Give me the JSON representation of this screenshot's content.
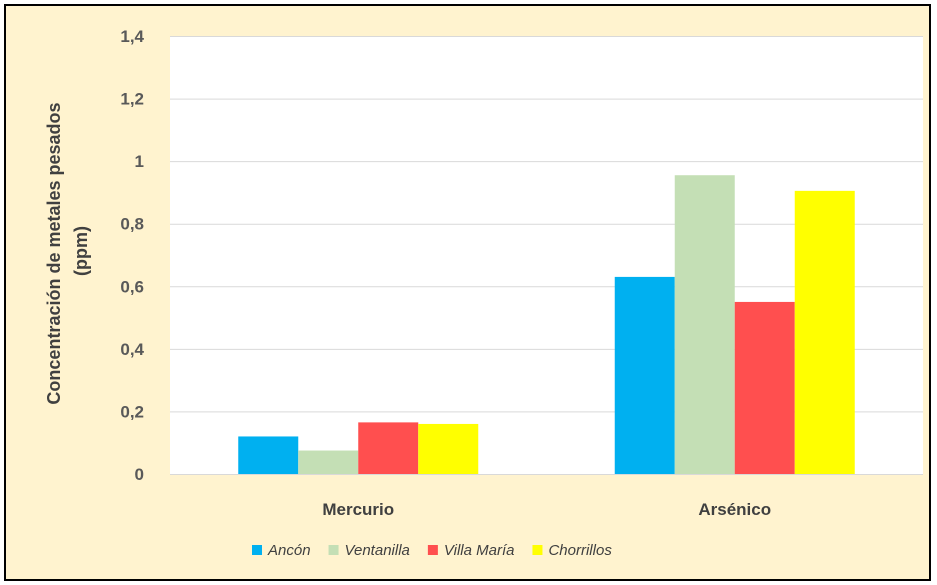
{
  "chart_data": {
    "type": "bar",
    "categories": [
      "Mercurio",
      "Arsénico"
    ],
    "series": [
      {
        "name": "Ancón",
        "color": "#00b0f0",
        "values": [
          0.12,
          0.63
        ]
      },
      {
        "name": "Ventanilla",
        "color": "#c4dfb5",
        "values": [
          0.075,
          0.955
        ]
      },
      {
        "name": "Villa María",
        "color": "#ff4f4f",
        "values": [
          0.165,
          0.55
        ]
      },
      {
        "name": "Chorrillos",
        "color": "#ffff00",
        "values": [
          0.16,
          0.905
        ]
      }
    ],
    "ylabel_lines": [
      "Concentración de metales pesados",
      "(ppm)"
    ],
    "xlabel": "",
    "ylim": [
      0,
      1.4
    ],
    "yticks": [
      {
        "value": 0,
        "label": "0"
      },
      {
        "value": 0.2,
        "label": "0,2"
      },
      {
        "value": 0.4,
        "label": "0,4"
      },
      {
        "value": 0.6,
        "label": "0,6"
      },
      {
        "value": 0.8,
        "label": "0,8"
      },
      {
        "value": 1.0,
        "label": "1"
      },
      {
        "value": 1.2,
        "label": "1,2"
      },
      {
        "value": 1.4,
        "label": "1,4"
      }
    ],
    "grid": true,
    "legend_position": "bottom"
  }
}
